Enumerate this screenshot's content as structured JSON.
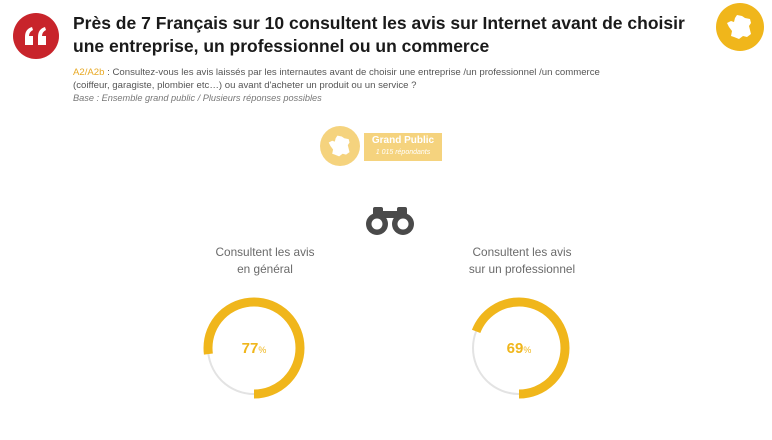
{
  "header": {
    "headline_line1": "Près de 7 Français sur 10 consultent les avis sur Internet avant de choisir",
    "headline_line2": "une entreprise, un professionnel ou un commerce",
    "quote_icon": "quote-icon",
    "corner_icon": "france-map-icon"
  },
  "question": {
    "code": "A2/A2b",
    "text_line1": " : Consultez-vous les avis laissés par les internautes avant de choisir une entreprise /un professionnel /un commerce",
    "text_line2": "(coiffeur, garagiste, plombier etc…) ou avant d'acheter un produit ou un service ?",
    "base": "Base : Ensemble grand public / Plusieurs réponses possibles"
  },
  "audience_badge": {
    "title": "Grand Public",
    "subtitle": "1 015 répondants",
    "icon": "france-map-icon"
  },
  "binoculars_icon": "binoculars-icon",
  "colors": {
    "accent": "#f0b61b",
    "track": "#e3e3e3",
    "quote": "#c8242b"
  },
  "chart_data": [
    {
      "type": "pie",
      "label_line1": "Consultent les avis",
      "label_line2": "en général",
      "value": 77,
      "display": "77",
      "unit": "%"
    },
    {
      "type": "pie",
      "label_line1": "Consultent les avis",
      "label_line2": "sur un professionnel",
      "value": 69,
      "display": "69",
      "unit": "%"
    }
  ]
}
